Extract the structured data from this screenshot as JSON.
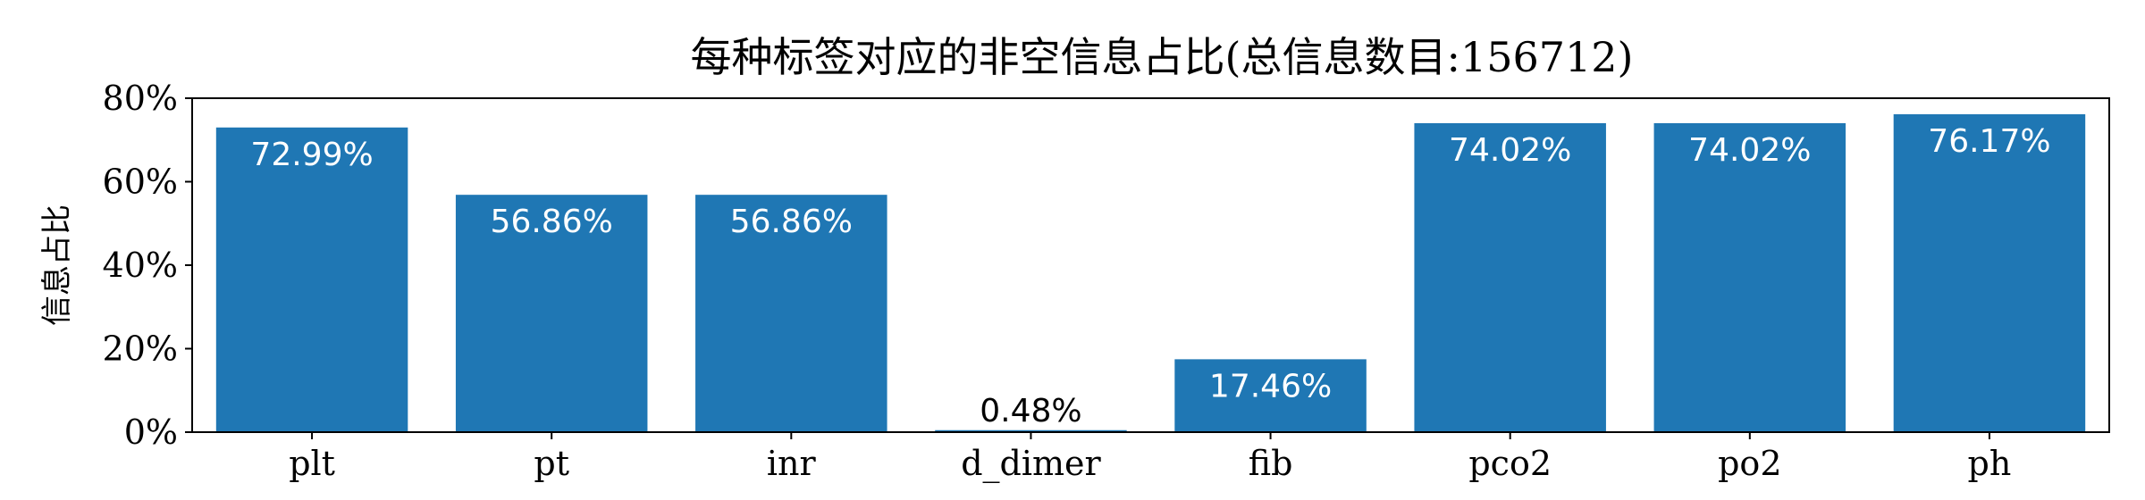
{
  "chart_data": {
    "type": "bar",
    "title": "每种标签对应的非空信息占比(总信息数目:156712)",
    "xlabel": "",
    "ylabel": "信息占比",
    "categories": [
      "plt",
      "pt",
      "inr",
      "d_dimer",
      "fib",
      "pco2",
      "po2",
      "ph"
    ],
    "values": [
      72.99,
      56.86,
      56.86,
      0.48,
      17.46,
      74.02,
      74.02,
      76.17
    ],
    "data_labels": [
      "72.99%",
      "56.86%",
      "56.86%",
      "0.48%",
      "17.46%",
      "74.02%",
      "74.02%",
      "76.17%"
    ],
    "ylim": [
      0,
      80
    ],
    "yticks": [
      0,
      20,
      40,
      60,
      80
    ],
    "ytick_labels": [
      "0%",
      "20%",
      "40%",
      "60%",
      "80%"
    ],
    "grid": false,
    "legend": "none",
    "bar_color": "#1f77b4",
    "label_color_inside": "#ffffff",
    "label_color_outside": "#000000"
  }
}
